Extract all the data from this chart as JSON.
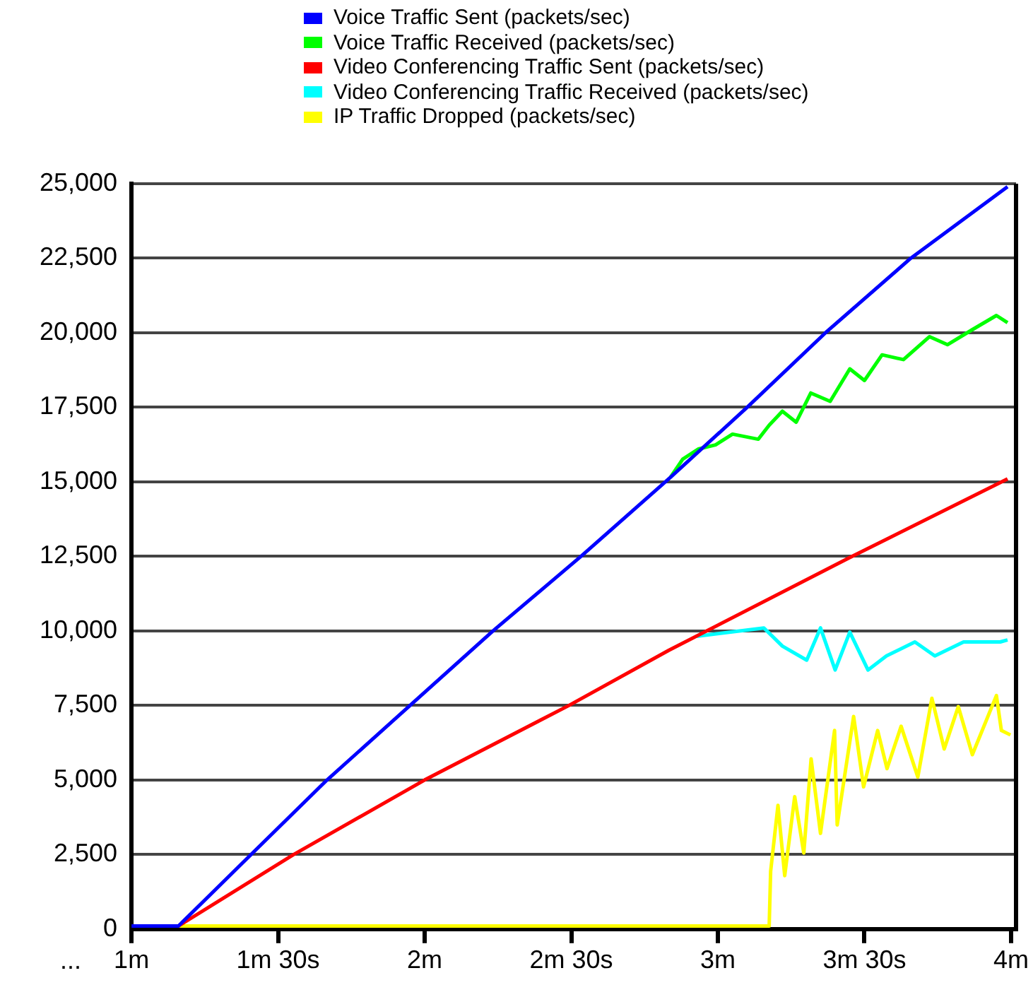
{
  "chart_data": {
    "type": "line",
    "xlim": [
      1,
      4.017
    ],
    "xticks": [
      {
        "value": 1,
        "label": "1m"
      },
      {
        "value": 1.5,
        "label": "1m 30s"
      },
      {
        "value": 2,
        "label": "2m"
      },
      {
        "value": 2.5,
        "label": "2m 30s"
      },
      {
        "value": 3,
        "label": "3m"
      },
      {
        "value": 3.5,
        "label": "3m 30s"
      },
      {
        "value": 4,
        "label": "4m"
      }
    ],
    "ylim": [
      0,
      25000
    ],
    "yticks": [
      {
        "value": 0,
        "label": "0"
      },
      {
        "value": 2500,
        "label": "2,500"
      },
      {
        "value": 5000,
        "label": "5,000"
      },
      {
        "value": 7500,
        "label": "7,500"
      },
      {
        "value": 10000,
        "label": "10,000"
      },
      {
        "value": 12500,
        "label": "12,500"
      },
      {
        "value": 15000,
        "label": "15,000"
      },
      {
        "value": 17500,
        "label": "17,500"
      },
      {
        "value": 20000,
        "label": "20,000"
      },
      {
        "value": 22500,
        "label": "22,500"
      },
      {
        "value": 25000,
        "label": "25,000"
      }
    ],
    "grid": "y",
    "legend": "top",
    "marker": "none",
    "line_style": "solid",
    "annotations": [
      "..."
    ],
    "series": [
      {
        "name": "Voice Traffic Sent (packets/sec)",
        "color": "#0000ff",
        "x": [
          1,
          1.16,
          1.408,
          1.667,
          1.95,
          2.233,
          2.533,
          2.838,
          3.1,
          3.367,
          3.658,
          3.988
        ],
        "values": [
          100,
          100,
          2500,
          5000,
          7500,
          10000,
          12500,
          15150,
          17500,
          20000,
          22500,
          24900
        ]
      },
      {
        "name": "Voice Traffic Received (packets/sec)",
        "color": "#00ff00",
        "x": [
          2.838,
          2.88,
          2.933,
          2.992,
          3.05,
          3.138,
          3.175,
          3.22,
          3.267,
          3.317,
          3.383,
          3.45,
          3.5,
          3.56,
          3.633,
          3.722,
          3.783,
          3.867,
          3.95,
          3.988
        ],
        "values": [
          15150,
          15760,
          16100,
          16240,
          16600,
          16430,
          16900,
          17370,
          17000,
          17980,
          17700,
          18790,
          18400,
          19260,
          19100,
          19870,
          19600,
          20100,
          20580,
          20340
        ]
      },
      {
        "name": "Video Conferencing Traffic Sent (packets/sec)",
        "color": "#ff0000",
        "x": [
          1.16,
          1.553,
          2,
          2.492,
          2.833,
          3.45,
          3.988
        ],
        "values": [
          100,
          2500,
          5000,
          7500,
          9350,
          12460,
          15100
        ]
      },
      {
        "name": "Video Conferencing Traffic Received (packets/sec)",
        "color": "#00ffff",
        "x": [
          2.928,
          3.157,
          3.22,
          3.303,
          3.35,
          3.4,
          3.45,
          3.512,
          3.575,
          3.672,
          3.74,
          3.838,
          3.963,
          3.988
        ],
        "values": [
          9820,
          10100,
          9490,
          9020,
          10100,
          8690,
          9960,
          8690,
          9160,
          9630,
          9160,
          9630,
          9630,
          9700
        ]
      },
      {
        "name": "IP Traffic Dropped (packets/sec)",
        "color": "#ffff00",
        "x": [
          1.16,
          3.175,
          3.18,
          3.205,
          3.228,
          3.262,
          3.293,
          3.318,
          3.35,
          3.398,
          3.407,
          3.463,
          3.497,
          3.545,
          3.577,
          3.625,
          3.682,
          3.73,
          3.772,
          3.82,
          3.868,
          3.95,
          3.967,
          3.998
        ],
        "values": [
          100,
          100,
          1940,
          4150,
          1790,
          4440,
          2550,
          5710,
          3210,
          6660,
          3490,
          7130,
          4770,
          6660,
          5380,
          6800,
          5100,
          7740,
          6040,
          7460,
          5850,
          7830,
          6660,
          6510
        ]
      }
    ]
  }
}
